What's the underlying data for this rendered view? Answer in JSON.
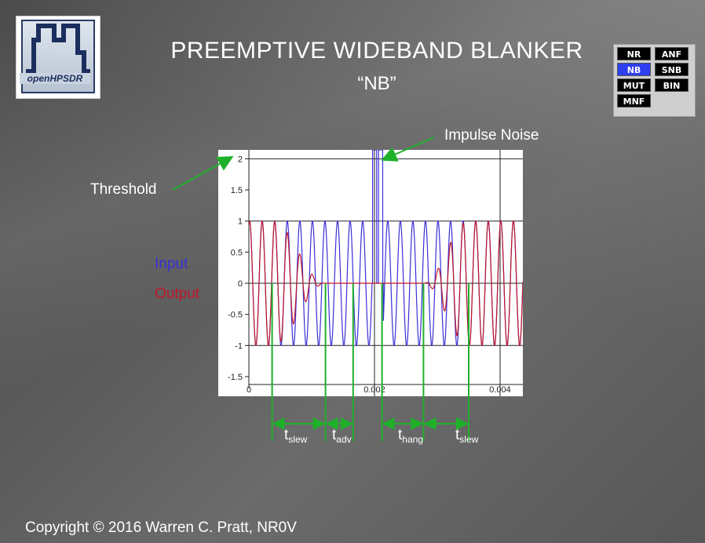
{
  "slide": {
    "title": "PREEMPTIVE WIDEBAND BLANKER",
    "subtitle": "“NB”",
    "copyright": "Copyright © 2016 Warren C. Pratt, NR0V"
  },
  "logo": {
    "text": "openHPSDR"
  },
  "panel": {
    "buttons": [
      "NR",
      "ANF",
      "NB",
      "SNB",
      "MUT",
      "BIN",
      "MNF"
    ],
    "active": "NB"
  },
  "annotations": {
    "impulse_noise": "Impulse Noise",
    "threshold": "Threshold",
    "input": "Input",
    "output": "Output",
    "input_color": "#3b2fd6",
    "output_color": "#c0182a",
    "marker_color": "#1fb02a"
  },
  "intervals": [
    {
      "t": "t",
      "sub": "slew"
    },
    {
      "t": "t",
      "sub": "adv"
    },
    {
      "t": "t",
      "sub": "hang"
    },
    {
      "t": "t",
      "sub": "slew"
    }
  ],
  "chart_data": {
    "type": "line",
    "title": "",
    "xlabel": "",
    "ylabel": "",
    "xlim": [
      0,
      0.0046
    ],
    "ylim": [
      -1.6,
      2.1
    ],
    "x_ticks": [
      "0",
      "0.002",
      "0.004"
    ],
    "y_ticks": [
      "2",
      "1.5",
      "1",
      "0.5",
      "0",
      "-0.5",
      "-1",
      "-1.5"
    ],
    "threshold": 2,
    "signal_frequency_hz": 5000,
    "impulse_window": [
      0.00196,
      0.00214
    ],
    "series": [
      {
        "name": "Input",
        "color": "#3b2fd6"
      },
      {
        "name": "Output",
        "color": "#c0182a"
      }
    ],
    "blanking_markers": [
      0.00037,
      0.00122,
      0.00166,
      0.00212,
      0.00278,
      0.0035
    ]
  }
}
